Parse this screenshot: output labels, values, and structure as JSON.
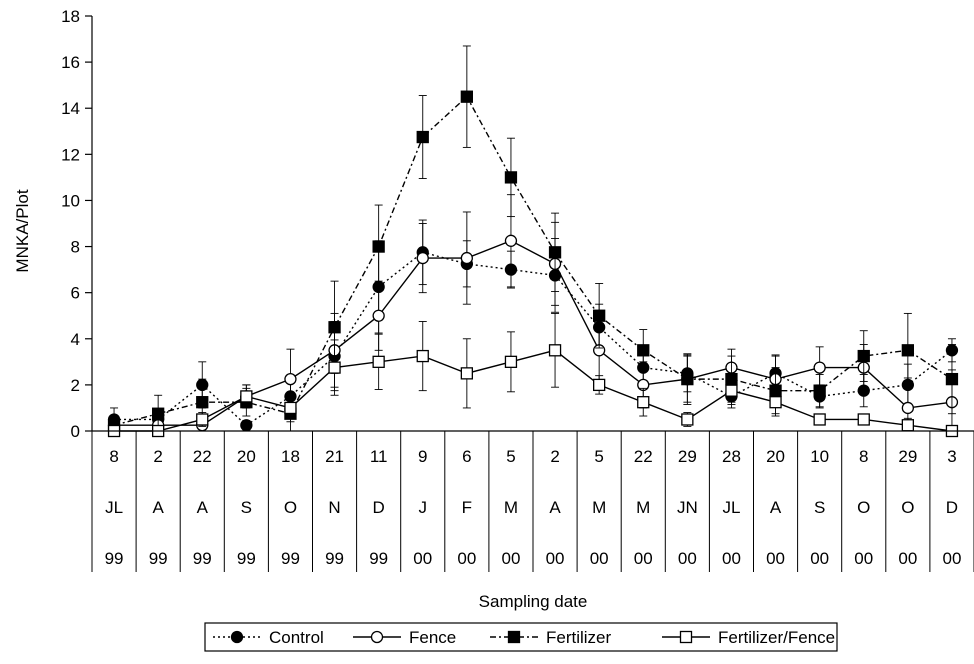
{
  "chart_data": {
    "type": "line",
    "xlabel": "Sampling date",
    "ylabel": "MNKA/Plot",
    "ylim": [
      0,
      18
    ],
    "yticks": [
      0,
      2,
      4,
      6,
      8,
      10,
      12,
      14,
      16,
      18
    ],
    "legend_position": "bottom-center",
    "dates": [
      {
        "day": "8",
        "month": "JL",
        "year": "99"
      },
      {
        "day": "2",
        "month": "A",
        "year": "99"
      },
      {
        "day": "22",
        "month": "A",
        "year": "99"
      },
      {
        "day": "20",
        "month": "S",
        "year": "99"
      },
      {
        "day": "18",
        "month": "O",
        "year": "99"
      },
      {
        "day": "21",
        "month": "N",
        "year": "99"
      },
      {
        "day": "11",
        "month": "D",
        "year": "99"
      },
      {
        "day": "9",
        "month": "J",
        "year": "00"
      },
      {
        "day": "6",
        "month": "F",
        "year": "00"
      },
      {
        "day": "5",
        "month": "M",
        "year": "00"
      },
      {
        "day": "2",
        "month": "A",
        "year": "00"
      },
      {
        "day": "5",
        "month": "M",
        "year": "00"
      },
      {
        "day": "22",
        "month": "M",
        "year": "00"
      },
      {
        "day": "29",
        "month": "JN",
        "year": "00"
      },
      {
        "day": "28",
        "month": "JL",
        "year": "00"
      },
      {
        "day": "20",
        "month": "A",
        "year": "00"
      },
      {
        "day": "10",
        "month": "S",
        "year": "00"
      },
      {
        "day": "8",
        "month": "O",
        "year": "00"
      },
      {
        "day": "29",
        "month": "O",
        "year": "00"
      },
      {
        "day": "3",
        "month": "D",
        "year": "00"
      }
    ],
    "series": [
      {
        "name": "Control",
        "marker": "filled-circle",
        "line": "dotted",
        "values": [
          0.5,
          0.5,
          2.0,
          0.25,
          1.5,
          3.25,
          6.25,
          7.75,
          7.25,
          7.0,
          6.75,
          4.5,
          2.75,
          2.5,
          1.5,
          2.5,
          1.5,
          1.75,
          2.0,
          3.5
        ],
        "errors": [
          0.5,
          0.4,
          1.0,
          0.2,
          0.8,
          1.5,
          2.0,
          1.4,
          1.0,
          0.8,
          1.6,
          1.0,
          0.8,
          0.8,
          0.5,
          0.8,
          0.5,
          0.7,
          0.9,
          0.5
        ]
      },
      {
        "name": "Fence",
        "marker": "open-circle",
        "line": "solid",
        "values": [
          0.25,
          0.25,
          0.25,
          1.5,
          2.25,
          3.5,
          5.0,
          7.5,
          7.5,
          8.25,
          7.25,
          3.5,
          2.0,
          2.25,
          2.75,
          2.25,
          2.75,
          2.75,
          1.0,
          1.25
        ],
        "errors": [
          0.3,
          0.3,
          0.3,
          0.5,
          1.3,
          1.6,
          1.5,
          1.5,
          2.0,
          2.0,
          1.8,
          1.4,
          1.0,
          1.1,
          0.8,
          1.0,
          0.9,
          1.0,
          1.3,
          1.4
        ]
      },
      {
        "name": "Fertilizer",
        "marker": "filled-square",
        "line": "dashdot",
        "values": [
          0.25,
          0.75,
          1.25,
          1.25,
          0.75,
          4.5,
          8.0,
          12.75,
          14.5,
          11.0,
          7.75,
          5.0,
          3.5,
          2.25,
          2.25,
          1.75,
          1.75,
          3.25,
          3.5,
          2.25
        ],
        "errors": [
          0.3,
          0.8,
          1.0,
          0.6,
          0.8,
          2.0,
          1.8,
          1.8,
          2.2,
          1.7,
          1.7,
          1.4,
          0.9,
          1.0,
          1.0,
          1.0,
          0.7,
          1.1,
          1.6,
          1.5
        ]
      },
      {
        "name": "Fertilizer/Fence",
        "marker": "open-square",
        "line": "solid",
        "values": [
          0.0,
          0.0,
          0.5,
          1.5,
          1.0,
          2.75,
          3.0,
          3.25,
          2.5,
          3.0,
          3.5,
          2.0,
          1.25,
          0.5,
          1.75,
          1.25,
          0.5,
          0.5,
          0.25,
          0.0
        ],
        "errors": [
          0.1,
          0.1,
          0.3,
          0.5,
          0.6,
          1.2,
          1.2,
          1.5,
          1.5,
          1.3,
          1.6,
          0.4,
          0.6,
          0.3,
          0.6,
          0.6,
          0.2,
          0.2,
          0.3,
          0.1
        ]
      }
    ]
  }
}
